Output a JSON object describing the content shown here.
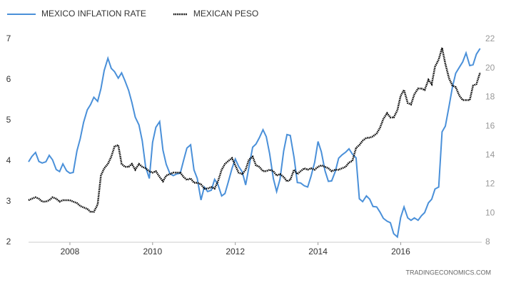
{
  "chart_data": {
    "type": "line",
    "footer": "TRADINGECONOMICS.COM",
    "x": [
      2007,
      2007.08,
      2007.17,
      2007.25,
      2007.33,
      2007.42,
      2007.5,
      2007.58,
      2007.67,
      2007.75,
      2007.83,
      2007.92,
      2008,
      2008.08,
      2008.17,
      2008.25,
      2008.33,
      2008.42,
      2008.5,
      2008.58,
      2008.67,
      2008.75,
      2008.83,
      2008.92,
      2009,
      2009.08,
      2009.17,
      2009.25,
      2009.33,
      2009.42,
      2009.5,
      2009.58,
      2009.67,
      2009.75,
      2009.83,
      2009.92,
      2010,
      2010.08,
      2010.17,
      2010.25,
      2010.33,
      2010.42,
      2010.5,
      2010.58,
      2010.67,
      2010.75,
      2010.83,
      2010.92,
      2011,
      2011.08,
      2011.17,
      2011.25,
      2011.33,
      2011.42,
      2011.5,
      2011.58,
      2011.67,
      2011.75,
      2011.83,
      2011.92,
      2012,
      2012.08,
      2012.17,
      2012.25,
      2012.33,
      2012.42,
      2012.5,
      2012.58,
      2012.67,
      2012.75,
      2012.83,
      2012.92,
      2013,
      2013.08,
      2013.17,
      2013.25,
      2013.33,
      2013.42,
      2013.5,
      2013.58,
      2013.67,
      2013.75,
      2013.83,
      2013.92,
      2014,
      2014.08,
      2014.17,
      2014.25,
      2014.33,
      2014.42,
      2014.5,
      2014.58,
      2014.67,
      2014.75,
      2014.83,
      2014.92,
      2015,
      2015.08,
      2015.17,
      2015.25,
      2015.33,
      2015.42,
      2015.5,
      2015.58,
      2015.67,
      2015.75,
      2015.83,
      2015.92,
      2016,
      2016.08,
      2016.17,
      2016.25,
      2016.33,
      2016.42,
      2016.5,
      2016.58,
      2016.67,
      2016.75,
      2016.83,
      2016.92,
      2017,
      2017.08,
      2017.17,
      2017.25,
      2017.33,
      2017.42,
      2017.5,
      2017.58,
      2017.67,
      2017.75,
      2017.83,
      2017.92
    ],
    "series": [
      {
        "name": "MEXICO INFLATION RATE",
        "color": "#4a90d9",
        "style": "solid",
        "values": [
          3.98,
          4.11,
          4.21,
          3.99,
          3.95,
          3.98,
          4.14,
          4.03,
          3.79,
          3.74,
          3.93,
          3.76,
          3.7,
          3.72,
          4.25,
          4.55,
          4.95,
          5.26,
          5.39,
          5.57,
          5.47,
          5.78,
          6.23,
          6.53,
          6.28,
          6.2,
          6.04,
          6.17,
          5.98,
          5.74,
          5.44,
          5.08,
          4.89,
          4.5,
          3.86,
          3.57,
          4.46,
          4.83,
          4.97,
          4.27,
          3.92,
          3.69,
          3.64,
          3.68,
          3.7,
          4.02,
          4.32,
          4.4,
          3.78,
          3.57,
          3.04,
          3.36,
          3.25,
          3.28,
          3.55,
          3.42,
          3.14,
          3.2,
          3.48,
          3.82,
          4.05,
          3.87,
          3.73,
          3.41,
          3.85,
          4.34,
          4.42,
          4.57,
          4.77,
          4.6,
          4.18,
          3.57,
          3.25,
          3.55,
          4.25,
          4.65,
          4.63,
          4.09,
          3.47,
          3.46,
          3.39,
          3.36,
          3.62,
          3.97,
          4.48,
          4.23,
          3.76,
          3.5,
          3.51,
          3.75,
          4.07,
          4.15,
          4.22,
          4.3,
          4.17,
          4.08,
          3.07,
          3.0,
          3.14,
          3.06,
          2.88,
          2.87,
          2.74,
          2.59,
          2.52,
          2.48,
          2.21,
          2.13,
          2.61,
          2.87,
          2.6,
          2.54,
          2.6,
          2.54,
          2.65,
          2.73,
          2.97,
          3.06,
          3.31,
          3.36,
          4.72,
          4.86,
          5.35,
          5.82,
          6.16,
          6.31,
          6.44,
          6.66,
          6.35,
          6.37,
          6.63,
          6.77
        ]
      },
      {
        "name": "MEXICAN PESO",
        "color": "#000000",
        "style": "dotted",
        "axis": "y2",
        "values": [
          10.9,
          11.0,
          11.1,
          11.0,
          10.8,
          10.8,
          10.9,
          11.1,
          11.0,
          10.8,
          10.9,
          10.9,
          10.9,
          10.8,
          10.7,
          10.5,
          10.4,
          10.3,
          10.1,
          10.1,
          10.6,
          12.6,
          13.1,
          13.4,
          13.9,
          14.6,
          14.7,
          13.4,
          13.2,
          13.2,
          13.4,
          13.0,
          13.4,
          13.2,
          13.1,
          12.9,
          12.8,
          12.9,
          12.5,
          12.2,
          12.6,
          12.7,
          12.8,
          12.8,
          12.8,
          12.5,
          12.3,
          12.4,
          12.1,
          12.1,
          12.0,
          11.7,
          11.7,
          11.8,
          11.7,
          12.2,
          13.0,
          13.4,
          13.6,
          13.8,
          13.3,
          12.8,
          12.7,
          13.0,
          13.7,
          13.9,
          13.3,
          13.2,
          12.9,
          12.9,
          13.0,
          12.9,
          12.6,
          12.7,
          12.5,
          12.2,
          12.3,
          13.0,
          12.7,
          12.9,
          13.1,
          13.0,
          13.1,
          13.0,
          13.2,
          13.3,
          13.2,
          13.1,
          12.9,
          13.0,
          13.0,
          13.1,
          13.2,
          13.5,
          13.6,
          14.5,
          14.7,
          15.0,
          15.2,
          15.2,
          15.3,
          15.5,
          15.9,
          16.5,
          16.9,
          16.6,
          16.6,
          17.1,
          18.1,
          18.5,
          17.6,
          17.5,
          18.2,
          18.6,
          18.6,
          18.5,
          19.2,
          18.9,
          20.1,
          20.6,
          21.4,
          20.3,
          19.3,
          18.8,
          18.7,
          18.1,
          17.8,
          17.8,
          17.8,
          18.8,
          18.9,
          19.7
        ]
      }
    ],
    "xlim": [
      2007,
      2017.96
    ],
    "xticks": [
      2008,
      2010,
      2012,
      2014,
      2016
    ],
    "ylim": [
      2,
      7
    ],
    "yticks": [
      2,
      3,
      4,
      5,
      6,
      7
    ],
    "y2lim": [
      8,
      22
    ],
    "y2ticks": [
      8,
      10,
      12,
      14,
      16,
      18,
      20,
      22
    ],
    "legend": "top-left",
    "grid": false
  }
}
